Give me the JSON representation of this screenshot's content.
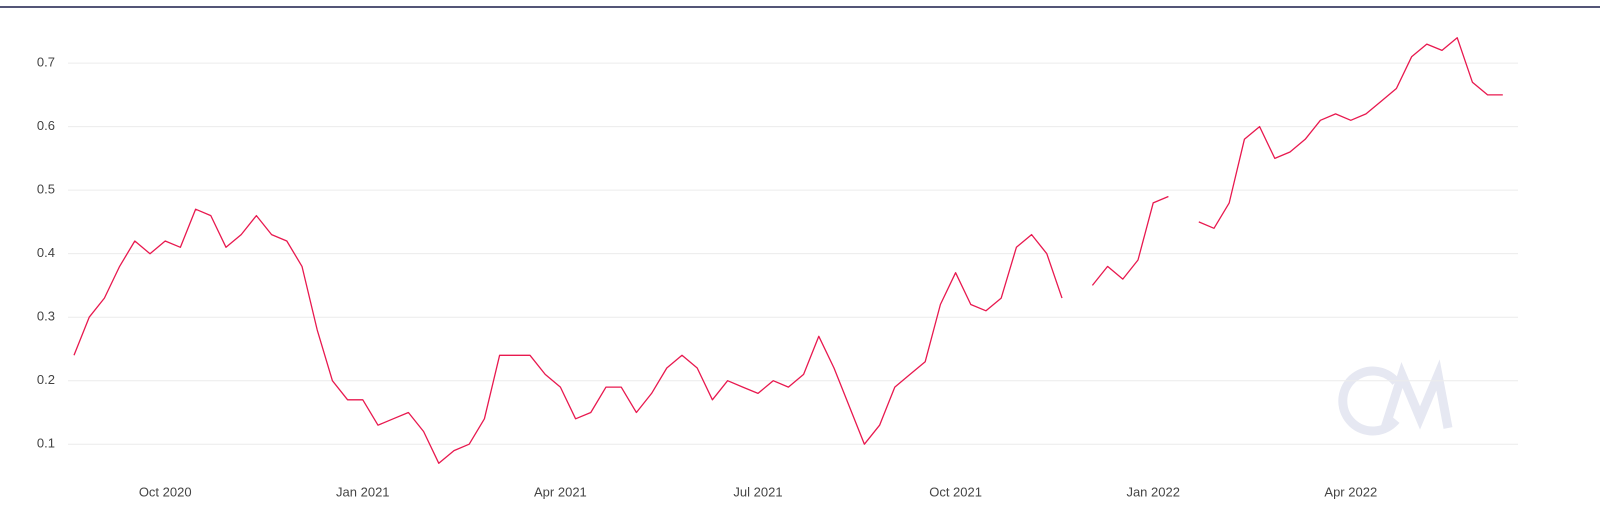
{
  "chart_data": {
    "type": "line",
    "categories": [
      null,
      null,
      null,
      null,
      null,
      null,
      "Oct 2020",
      null,
      null,
      null,
      null,
      null,
      null,
      null,
      null,
      null,
      null,
      null,
      null,
      "Jan 2021",
      null,
      null,
      null,
      null,
      null,
      null,
      null,
      null,
      null,
      null,
      null,
      null,
      "Apr 2021",
      null,
      null,
      null,
      null,
      null,
      null,
      null,
      null,
      null,
      null,
      null,
      null,
      "Jul 2021",
      null,
      null,
      null,
      null,
      null,
      null,
      null,
      null,
      null,
      null,
      null,
      null,
      "Oct 2021",
      null,
      null,
      null,
      null,
      null,
      null,
      null,
      null,
      null,
      null,
      null,
      null,
      "Jan 2022",
      null,
      null,
      null,
      null,
      null,
      null,
      null,
      null,
      null,
      null,
      null,
      null,
      "Apr 2022",
      null,
      null,
      null,
      null,
      null,
      null,
      null,
      null,
      null,
      null
    ],
    "values": [
      0.24,
      0.3,
      0.33,
      0.38,
      0.42,
      0.4,
      0.42,
      0.41,
      0.47,
      0.46,
      0.41,
      0.43,
      0.46,
      0.43,
      0.42,
      0.38,
      0.28,
      0.2,
      0.17,
      0.17,
      0.13,
      0.14,
      0.15,
      0.12,
      0.07,
      0.09,
      0.1,
      0.14,
      0.24,
      0.24,
      0.24,
      0.21,
      0.19,
      0.14,
      0.15,
      0.19,
      0.19,
      0.15,
      0.18,
      0.22,
      0.24,
      0.22,
      0.17,
      0.2,
      0.19,
      0.18,
      0.2,
      0.19,
      0.21,
      0.27,
      0.22,
      0.16,
      0.1,
      0.13,
      0.19,
      0.21,
      0.23,
      0.32,
      0.37,
      0.32,
      0.31,
      0.33,
      0.41,
      0.43,
      0.4,
      0.33,
      null,
      0.35,
      0.38,
      0.36,
      0.39,
      0.48,
      0.49,
      null,
      0.45,
      0.44,
      0.48,
      0.58,
      0.6,
      0.55,
      0.56,
      0.58,
      0.61,
      0.62,
      0.61,
      0.62,
      0.64,
      0.66,
      0.71,
      0.73,
      0.72,
      0.74,
      0.67,
      0.65,
      0.65
    ],
    "color": "#e8194f",
    "ylim": [
      0.05,
      0.76
    ],
    "yticks": [
      0.1,
      0.2,
      0.3,
      0.4,
      0.5,
      0.6,
      0.7
    ],
    "grid": true
  }
}
